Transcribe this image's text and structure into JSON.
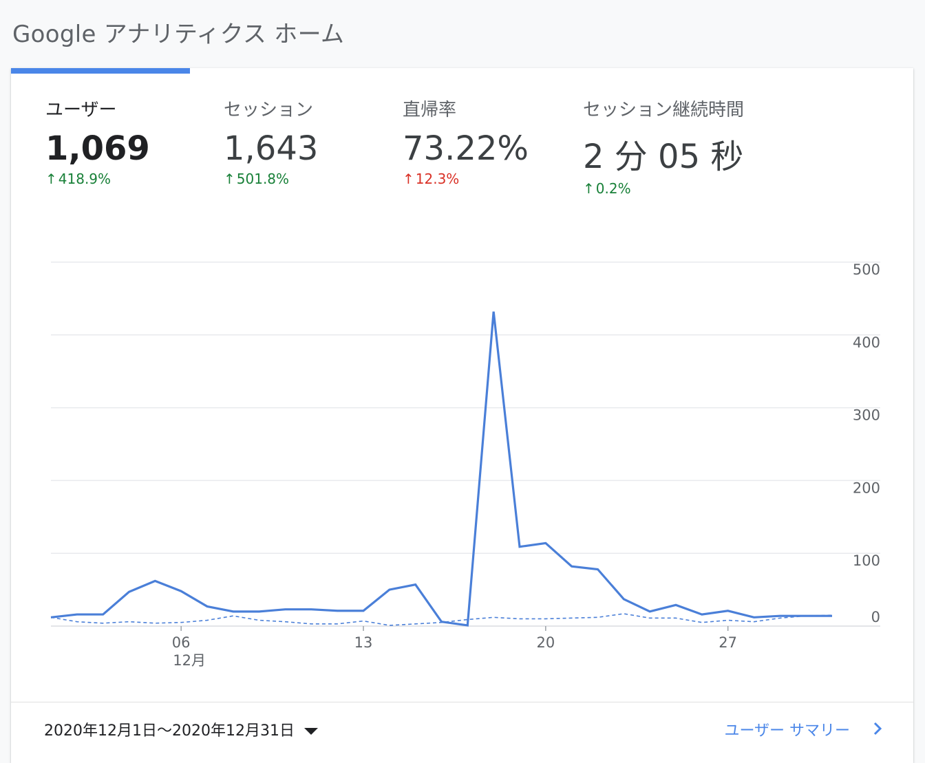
{
  "page": {
    "title": "Google アナリティクス ホーム"
  },
  "metrics": [
    {
      "label": "ユーザー",
      "value": "1,069",
      "change": "418.9%",
      "direction": "up",
      "status": "good"
    },
    {
      "label": "セッション",
      "value": "1,643",
      "change": "501.8%",
      "direction": "up",
      "status": "good"
    },
    {
      "label": "直帰率",
      "value": "73.22%",
      "change": "12.3%",
      "direction": "up",
      "status": "bad"
    },
    {
      "label": "セッション継続時間",
      "value": "2 分 05 秒",
      "change": "0.2%",
      "direction": "up",
      "status": "good"
    }
  ],
  "chart_data": {
    "type": "line",
    "x": [
      1,
      2,
      3,
      4,
      5,
      6,
      7,
      8,
      9,
      10,
      11,
      12,
      13,
      14,
      15,
      16,
      17,
      18,
      19,
      20,
      21,
      22,
      23,
      24,
      25,
      26,
      27,
      28,
      29,
      30,
      31
    ],
    "x_tick_labels": [
      "06",
      "13",
      "20",
      "27"
    ],
    "x_tick_values": [
      6,
      13,
      20,
      27
    ],
    "x_month_label": "12月",
    "y_tick_labels": [
      "500",
      "400",
      "300",
      "200",
      "100",
      "0"
    ],
    "ylim": [
      0,
      500
    ],
    "grid": true,
    "series": [
      {
        "style": "solid",
        "color": "#4a7fd8",
        "values": [
          12,
          16,
          16,
          47,
          62,
          48,
          27,
          20,
          20,
          23,
          23,
          21,
          21,
          50,
          57,
          6,
          1,
          432,
          109,
          114,
          82,
          78,
          37,
          20,
          29,
          16,
          21,
          12,
          14,
          14,
          14
        ]
      },
      {
        "style": "dashed",
        "color": "#4a7fd8",
        "values": [
          12,
          6,
          4,
          6,
          4,
          5,
          8,
          14,
          8,
          6,
          3,
          3,
          7,
          1,
          3,
          5,
          9,
          12,
          10,
          10,
          11,
          12,
          17,
          11,
          11,
          5,
          8,
          6,
          11,
          14,
          15
        ]
      }
    ]
  },
  "footer": {
    "date_range": "2020年12月1日〜2020年12月31日",
    "summary_link": "ユーザー サマリー"
  },
  "colors": {
    "accent": "#4a86e8",
    "up_good": "#188038",
    "up_bad": "#d93025"
  }
}
